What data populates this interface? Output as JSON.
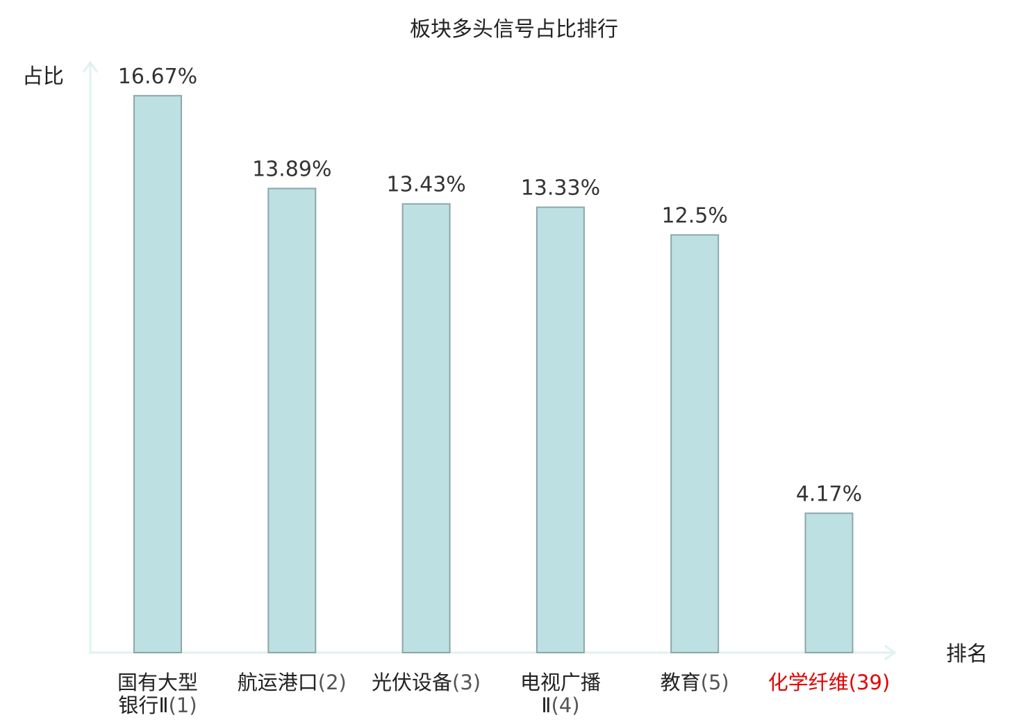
{
  "chart_data": {
    "type": "bar",
    "title": "板块多头信号占比排行",
    "ylabel": "占比",
    "xlabel": "排名",
    "ylim": [
      0,
      17.6
    ],
    "grid": false,
    "categories": [
      {
        "name": "国有大型银行Ⅱ",
        "rank": "(1)",
        "highlight": false
      },
      {
        "name": "航运港口",
        "rank": "(2)",
        "highlight": false
      },
      {
        "name": "光伏设备",
        "rank": "(3)",
        "highlight": false
      },
      {
        "name": "电视广播Ⅱ",
        "rank": "(4)",
        "highlight": false
      },
      {
        "name": "教育",
        "rank": "(5)",
        "highlight": false
      },
      {
        "name": "化学纤维",
        "rank": "(39)",
        "highlight": true
      }
    ],
    "values": [
      16.67,
      13.89,
      13.43,
      13.33,
      12.5,
      4.17
    ],
    "value_labels": [
      "16.67%",
      "13.89%",
      "13.43%",
      "13.33%",
      "12.5%",
      "4.17%"
    ],
    "colors": {
      "bar_fill": "#bde0e3",
      "bar_stroke": "#8aa7aa",
      "axis": "#dff2ef",
      "highlight_text": "#e60000"
    }
  }
}
